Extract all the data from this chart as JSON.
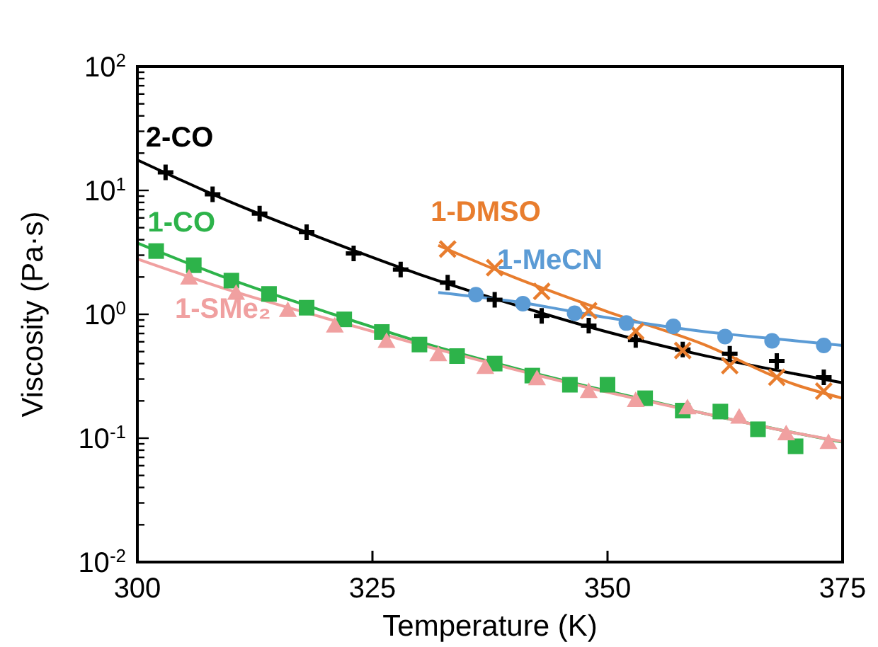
{
  "chart_data": {
    "type": "scatter",
    "xlabel": "Temperature (K)",
    "ylabel": "Viscosity (Pa·s)",
    "log": "y",
    "grid": false,
    "xlim": [
      300,
      375
    ],
    "xticks": [
      300,
      325,
      350,
      375
    ],
    "ylim": [
      0.01,
      100
    ],
    "yticks": [
      {
        "value": 0.01,
        "label": "10$^{-2}$"
      },
      {
        "value": 0.02,
        "label": null
      },
      {
        "value": 0.03,
        "label": null
      },
      {
        "value": 0.04,
        "label": null
      },
      {
        "value": 0.05,
        "label": null
      },
      {
        "value": 0.06,
        "label": null
      },
      {
        "value": 0.07,
        "label": null
      },
      {
        "value": 0.08,
        "label": null
      },
      {
        "value": 0.09,
        "label": null
      },
      {
        "value": 0.1,
        "label": "10$^{-1}$"
      },
      {
        "value": 0.2,
        "label": null
      },
      {
        "value": 0.3,
        "label": null
      },
      {
        "value": 0.4,
        "label": null
      },
      {
        "value": 0.5,
        "label": null
      },
      {
        "value": 0.6,
        "label": null
      },
      {
        "value": 0.7,
        "label": null
      },
      {
        "value": 0.8,
        "label": null
      },
      {
        "value": 0.9,
        "label": null
      },
      {
        "value": 1,
        "label": "10$^{0}$"
      },
      {
        "value": 2,
        "label": null
      },
      {
        "value": 3,
        "label": null
      },
      {
        "value": 4,
        "label": null
      },
      {
        "value": 5,
        "label": null
      },
      {
        "value": 6,
        "label": null
      },
      {
        "value": 7,
        "label": null
      },
      {
        "value": 8,
        "label": null
      },
      {
        "value": 9,
        "label": null
      },
      {
        "value": 10,
        "label": "10$^{1}$"
      },
      {
        "value": 20,
        "label": null
      },
      {
        "value": 30,
        "label": null
      },
      {
        "value": 40,
        "label": null
      },
      {
        "value": 50,
        "label": null
      },
      {
        "value": 60,
        "label": null
      },
      {
        "value": 70,
        "label": null
      },
      {
        "value": 80,
        "label": null
      },
      {
        "value": 90,
        "label": null
      },
      {
        "value": 100,
        "label": "10$^{2}$"
      }
    ],
    "series": [
      {
        "name": "2-CO",
        "marker": "plus",
        "color": "#000000",
        "x": [
          303,
          308,
          313,
          318,
          323,
          328,
          333,
          338,
          343,
          348,
          353,
          358,
          363,
          368,
          373
        ],
        "values": [
          14,
          9.3,
          6.5,
          4.6,
          3.1,
          2.3,
          1.8,
          1.31,
          0.97,
          0.81,
          0.62,
          0.52,
          0.48,
          0.42,
          0.31
        ]
      },
      {
        "name": "1-CO",
        "marker": "square",
        "color": "#2db34a",
        "x": [
          302,
          306,
          310,
          314,
          318,
          322,
          326,
          330,
          334,
          338,
          342,
          346,
          350,
          354,
          358,
          362,
          366,
          370
        ],
        "values": [
          3.24,
          2.49,
          1.87,
          1.46,
          1.13,
          0.91,
          0.72,
          0.57,
          0.46,
          0.4,
          0.32,
          0.27,
          0.27,
          0.21,
          0.167,
          0.164,
          0.118,
          0.086
        ]
      },
      {
        "name": "1-SMe₂",
        "marker": "triangle",
        "color": "#f0a0a0",
        "x": [
          305.5,
          310.5,
          316,
          321,
          326.5,
          332,
          337,
          342.5,
          348,
          353,
          358.5,
          364,
          369,
          373.5
        ],
        "values": [
          1.95,
          1.47,
          1.07,
          0.8,
          0.6,
          0.47,
          0.37,
          0.3,
          0.237,
          0.2,
          0.175,
          0.147,
          0.108,
          0.092
        ]
      },
      {
        "name": "1-DMSO",
        "marker": "cross",
        "color": "#e87d2e",
        "x": [
          333,
          338,
          343,
          348,
          353,
          358,
          363,
          368,
          373
        ],
        "values": [
          3.36,
          2.38,
          1.53,
          1.07,
          0.73,
          0.51,
          0.385,
          0.31,
          0.24
        ]
      },
      {
        "name": "1-MeCN",
        "marker": "circle",
        "color": "#5b9bd5",
        "x": [
          336,
          341,
          346.5,
          352,
          357,
          362.5,
          367.5,
          373
        ],
        "values": [
          1.44,
          1.22,
          1.02,
          0.85,
          0.8,
          0.66,
          0.61,
          0.56
        ]
      },
      {
        "type": "line",
        "marker": "none",
        "color": "#000000",
        "x": [
          300,
          310,
          320,
          330,
          340,
          350,
          360,
          370,
          375
        ],
        "values": [
          17.6,
          8,
          4,
          2.1,
          1.2,
          0.72,
          0.47,
          0.33,
          0.28
        ]
      },
      {
        "type": "line",
        "marker": "none",
        "color": "#2db34a",
        "x": [
          300,
          310,
          320,
          330,
          340,
          350,
          360,
          370,
          375
        ],
        "values": [
          3.76,
          1.9,
          1.05,
          0.6,
          0.37,
          0.24,
          0.16,
          0.11,
          0.093
        ]
      },
      {
        "type": "line",
        "marker": "none",
        "color": "#f0a0a0",
        "x": [
          300,
          310,
          320,
          330,
          340,
          350,
          360,
          370,
          375
        ],
        "values": [
          2.8,
          1.55,
          0.93,
          0.57,
          0.36,
          0.235,
          0.16,
          0.11,
          0.094
        ]
      },
      {
        "type": "line",
        "marker": "none",
        "color": "#e87d2e",
        "x": [
          332,
          340,
          350,
          360,
          370,
          375
        ],
        "values": [
          3.6,
          2,
          1.05,
          0.58,
          0.27,
          0.21
        ]
      },
      {
        "type": "line",
        "marker": "none",
        "color": "#5b9bd5",
        "x": [
          332,
          340,
          350,
          360,
          370,
          375
        ],
        "values": [
          1.5,
          1.27,
          0.94,
          0.73,
          0.61,
          0.56
        ]
      }
    ]
  }
}
